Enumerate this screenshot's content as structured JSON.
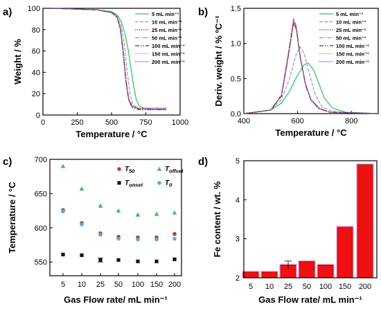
{
  "colors": {
    "s5": "#22c94a",
    "s10": "#9a8fc8",
    "s25": "#b5322e",
    "s50": "#c86ad8",
    "s100": "#4a3a1a",
    "s150": "#e07050",
    "s200": "#4a2aa0",
    "bar_fill": "#ee1111",
    "bar_glow": "#e8a8e8",
    "t50": "#c0392b",
    "toffset": "#3fbf5f",
    "tonset": "#111111",
    "t0": "#58a8e8"
  },
  "chart_data": [
    {
      "panel": "a)",
      "type": "line",
      "xlabel": "Temperature / °C",
      "ylabel": "Weight / %",
      "xlim": [
        0,
        1000
      ],
      "ylim": [
        0,
        100
      ],
      "xticks": [
        "0",
        "250",
        "500",
        "750",
        "1000"
      ],
      "yticks": [
        "0",
        "20",
        "40",
        "60",
        "80",
        "100"
      ],
      "legend_position": "right",
      "series": [
        {
          "name": "5 mL min⁻¹",
          "key": "s5",
          "dash": "",
          "points": [
            [
              50,
              100
            ],
            [
              200,
              99.5
            ],
            [
              400,
              98.5
            ],
            [
              500,
              97
            ],
            [
              540,
              94
            ],
            [
              570,
              88
            ],
            [
              600,
              75
            ],
            [
              620,
              62
            ],
            [
              640,
              45
            ],
            [
              660,
              28
            ],
            [
              680,
              15
            ],
            [
              700,
              9
            ],
            [
              740,
              6
            ],
            [
              800,
              5
            ],
            [
              900,
              5
            ]
          ]
        },
        {
          "name": "10 mL min⁻¹",
          "key": "s10",
          "dash": "5,2",
          "points": [
            [
              50,
              100
            ],
            [
              200,
              99.5
            ],
            [
              400,
              98.5
            ],
            [
              500,
              96.5
            ],
            [
              540,
              93
            ],
            [
              570,
              84
            ],
            [
              595,
              65
            ],
            [
              615,
              40
            ],
            [
              635,
              20
            ],
            [
              655,
              10
            ],
            [
              690,
              6
            ],
            [
              800,
              5
            ],
            [
              900,
              5
            ]
          ]
        },
        {
          "name": "25 mL min⁻¹",
          "key": "s25",
          "dash": "1.5,1.5",
          "points": [
            [
              50,
              100
            ],
            [
              200,
              99.5
            ],
            [
              400,
              98.5
            ],
            [
              500,
              96
            ],
            [
              540,
              92
            ],
            [
              565,
              82
            ],
            [
              585,
              62
            ],
            [
              605,
              35
            ],
            [
              625,
              16
            ],
            [
              650,
              8
            ],
            [
              700,
              6
            ],
            [
              800,
              6
            ],
            [
              900,
              6
            ]
          ]
        },
        {
          "name": "50 mL min⁻¹",
          "key": "s50",
          "dash": "6,2,1.5,2",
          "points": [
            [
              50,
              100
            ],
            [
              200,
              99.5
            ],
            [
              400,
              98.5
            ],
            [
              500,
              96
            ],
            [
              540,
              92
            ],
            [
              565,
              81
            ],
            [
              585,
              60
            ],
            [
              605,
              33
            ],
            [
              625,
              15
            ],
            [
              650,
              8
            ],
            [
              700,
              6
            ],
            [
              800,
              6
            ],
            [
              900,
              6
            ]
          ]
        },
        {
          "name": "100 mL min⁻¹",
          "key": "s100",
          "dash": "6,2,1.5,2,1.5,2",
          "points": [
            [
              50,
              100
            ],
            [
              200,
              99.5
            ],
            [
              400,
              98.5
            ],
            [
              500,
              96
            ],
            [
              540,
              92
            ],
            [
              565,
              80
            ],
            [
              585,
              58
            ],
            [
              605,
              31
            ],
            [
              625,
              14
            ],
            [
              650,
              7
            ],
            [
              700,
              5
            ],
            [
              800,
              5
            ],
            [
              900,
              5
            ]
          ]
        },
        {
          "name": "150 mL min⁻¹",
          "key": "s150",
          "dash": "1,1.2",
          "points": [
            [
              50,
              100
            ],
            [
              200,
              99.5
            ],
            [
              400,
              98.5
            ],
            [
              500,
              96
            ],
            [
              540,
              92
            ],
            [
              565,
              81
            ],
            [
              585,
              60
            ],
            [
              605,
              33
            ],
            [
              625,
              15
            ],
            [
              650,
              9
            ],
            [
              700,
              7
            ],
            [
              800,
              7
            ],
            [
              900,
              7
            ]
          ]
        },
        {
          "name": "200 mL min⁻¹",
          "key": "s200",
          "dash": "1,1.2",
          "points": [
            [
              50,
              100
            ],
            [
              200,
              99.5
            ],
            [
              400,
              98.5
            ],
            [
              500,
              96
            ],
            [
              540,
              91.5
            ],
            [
              565,
              80
            ],
            [
              585,
              58
            ],
            [
              605,
              31
            ],
            [
              625,
              14
            ],
            [
              650,
              8
            ],
            [
              700,
              6
            ],
            [
              800,
              6
            ],
            [
              900,
              6
            ]
          ]
        }
      ]
    },
    {
      "panel": "b)",
      "type": "line",
      "xlabel": "Temperature / °C",
      "ylabel": "Deriv. weight / % ºC⁻¹",
      "xlim": [
        400,
        900
      ],
      "ylim": [
        0,
        1.5
      ],
      "xticks": [
        "400",
        "600",
        "800"
      ],
      "yticks": [
        "0.0",
        "0.5",
        "1.0",
        "1.5"
      ],
      "legend_position": "right",
      "series": [
        {
          "name": "5 mL min⁻¹",
          "key": "s5",
          "dash": "",
          "points": [
            [
              400,
              0
            ],
            [
              500,
              0.05
            ],
            [
              540,
              0.15
            ],
            [
              570,
              0.32
            ],
            [
              600,
              0.55
            ],
            [
              625,
              0.7
            ],
            [
              640,
              0.72
            ],
            [
              660,
              0.62
            ],
            [
              680,
              0.42
            ],
            [
              700,
              0.22
            ],
            [
              730,
              0.08
            ],
            [
              780,
              0.02
            ],
            [
              900,
              0
            ]
          ]
        },
        {
          "name": "10 mL min⁻¹",
          "key": "s10",
          "dash": "5,2",
          "points": [
            [
              400,
              0
            ],
            [
              500,
              0.05
            ],
            [
              540,
              0.2
            ],
            [
              570,
              0.5
            ],
            [
              595,
              0.85
            ],
            [
              610,
              0.95
            ],
            [
              625,
              0.85
            ],
            [
              645,
              0.55
            ],
            [
              665,
              0.28
            ],
            [
              690,
              0.1
            ],
            [
              730,
              0.03
            ],
            [
              900,
              0
            ]
          ]
        },
        {
          "name": "25 mL min⁻¹",
          "key": "s25",
          "dash": "1.5,1.5",
          "points": [
            [
              400,
              0
            ],
            [
              500,
              0.05
            ],
            [
              540,
              0.25
            ],
            [
              565,
              0.8
            ],
            [
              585,
              1.3
            ],
            [
              595,
              1.2
            ],
            [
              610,
              0.8
            ],
            [
              630,
              0.42
            ],
            [
              650,
              0.2
            ],
            [
              680,
              0.08
            ],
            [
              720,
              0.02
            ],
            [
              900,
              0
            ]
          ]
        },
        {
          "name": "50 mL min⁻¹",
          "key": "s50",
          "dash": "6,2,1.5,2",
          "points": [
            [
              400,
              0
            ],
            [
              500,
              0.05
            ],
            [
              540,
              0.27
            ],
            [
              565,
              0.85
            ],
            [
              585,
              1.36
            ],
            [
              595,
              1.25
            ],
            [
              610,
              0.82
            ],
            [
              630,
              0.42
            ],
            [
              650,
              0.2
            ],
            [
              680,
              0.08
            ],
            [
              720,
              0.02
            ],
            [
              900,
              0
            ]
          ]
        },
        {
          "name": "100 mL min⁻¹",
          "key": "s100",
          "dash": "6,2,1.5,2,1.5,2",
          "points": [
            [
              400,
              0
            ],
            [
              500,
              0.05
            ],
            [
              540,
              0.26
            ],
            [
              565,
              0.82
            ],
            [
              585,
              1.32
            ],
            [
              595,
              1.22
            ],
            [
              610,
              0.8
            ],
            [
              630,
              0.4
            ],
            [
              650,
              0.19
            ],
            [
              680,
              0.07
            ],
            [
              720,
              0.02
            ],
            [
              900,
              0
            ]
          ]
        },
        {
          "name": "150 mL min⁻¹",
          "key": "s150",
          "dash": "1,1.2",
          "points": [
            [
              400,
              0
            ],
            [
              500,
              0.05
            ],
            [
              540,
              0.26
            ],
            [
              565,
              0.84
            ],
            [
              585,
              1.34
            ],
            [
              595,
              1.24
            ],
            [
              610,
              0.81
            ],
            [
              630,
              0.41
            ],
            [
              650,
              0.2
            ],
            [
              680,
              0.08
            ],
            [
              720,
              0.02
            ],
            [
              900,
              0
            ]
          ]
        },
        {
          "name": "200 mL min⁻¹",
          "key": "s200",
          "dash": "1,1.2",
          "points": [
            [
              400,
              0
            ],
            [
              500,
              0.05
            ],
            [
              540,
              0.25
            ],
            [
              565,
              0.8
            ],
            [
              585,
              1.28
            ],
            [
              595,
              1.2
            ],
            [
              610,
              0.79
            ],
            [
              630,
              0.4
            ],
            [
              650,
              0.19
            ],
            [
              680,
              0.07
            ],
            [
              720,
              0.02
            ],
            [
              900,
              0
            ]
          ]
        }
      ]
    },
    {
      "panel": "c)",
      "type": "scatter",
      "xlabel": "Gas Flow rate/ mL min⁻¹",
      "ylabel": "Temperature / °C",
      "ylim": [
        530,
        700
      ],
      "categories": [
        "5",
        "10",
        "25",
        "50",
        "100",
        "150",
        "200"
      ],
      "yticks": [
        "550",
        "600",
        "650",
        "700"
      ],
      "legend_position": "top-right",
      "series": [
        {
          "name": "T50",
          "sub": "50",
          "key": "t50",
          "marker": "circle",
          "values": [
            626,
            607,
            592,
            587,
            586,
            586,
            591
          ]
        },
        {
          "name": "Toffset",
          "sub": "offset",
          "key": "toffset",
          "marker": "triangle",
          "values": [
            690,
            657,
            632,
            625,
            619,
            620,
            622
          ]
        },
        {
          "name": "Tonset",
          "sub": "onset",
          "key": "tonset",
          "marker": "square",
          "values": [
            561,
            560,
            553,
            553,
            551,
            551,
            554
          ],
          "errors": [
            0,
            0,
            3,
            0,
            0,
            0,
            0
          ]
        },
        {
          "name": "T0",
          "sub": "0",
          "key": "t0",
          "marker": "circle",
          "values": [
            624,
            605,
            590,
            584,
            583,
            583,
            584
          ]
        }
      ]
    },
    {
      "panel": "d)",
      "type": "bar",
      "xlabel": "Gas Flow rate/ mL min⁻¹",
      "ylabel": "Fe content / wt. %",
      "ylim": [
        2,
        5
      ],
      "categories": [
        "5",
        "10",
        "25",
        "50",
        "100",
        "150",
        "200"
      ],
      "yticks": [
        "2",
        "3",
        "4",
        "5"
      ],
      "values": [
        2.15,
        2.15,
        2.33,
        2.42,
        2.33,
        3.3,
        4.9
      ],
      "errors": [
        0,
        0,
        0.1,
        0,
        0,
        0,
        0
      ]
    }
  ]
}
